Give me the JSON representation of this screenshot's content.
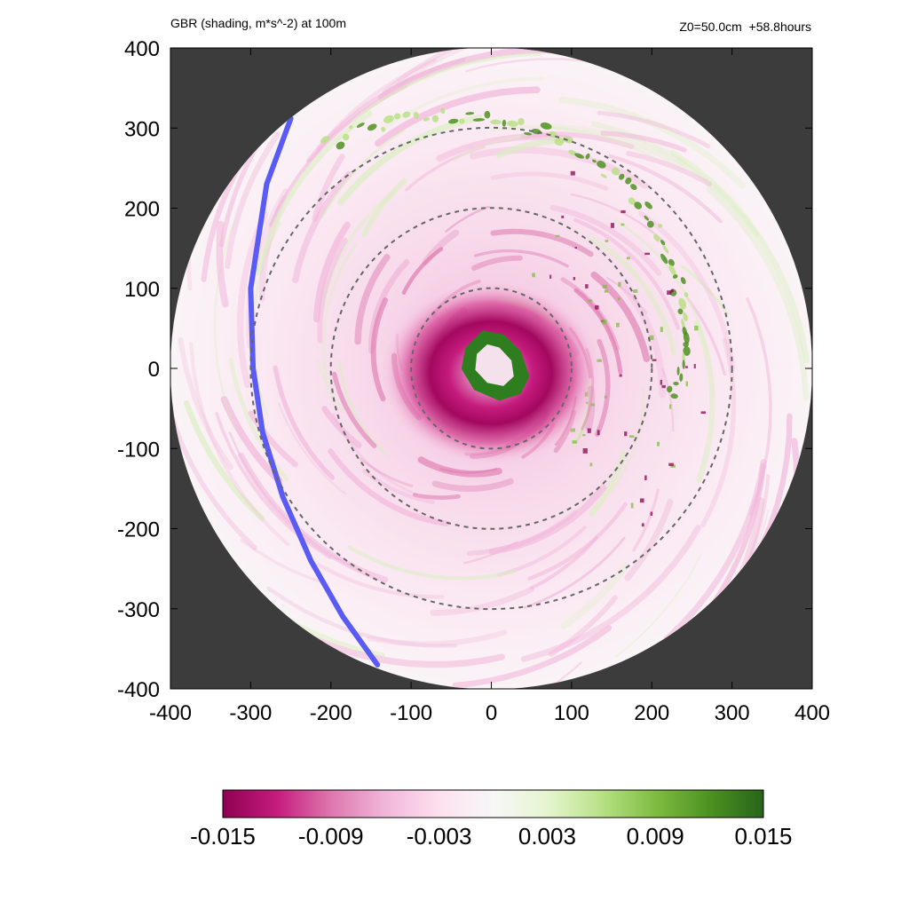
{
  "header": {
    "title": "GBR (shading, m*s^-2) at 100m",
    "info": "Z0=50.0cm  +58.8hours"
  },
  "chart_data": {
    "type": "heatmap",
    "title": "GBR (shading, m*s^-2) at 100m",
    "subtitle": "Z0=50.0cm  +58.8hours",
    "xlim": [
      -400,
      400
    ],
    "ylim": [
      -400,
      400
    ],
    "xticks": [
      "-400",
      "-300",
      "-200",
      "-100",
      "0",
      "100",
      "200",
      "300",
      "400"
    ],
    "yticks": [
      "400",
      "300",
      "200",
      "100",
      "0",
      "-100",
      "-200",
      "-300",
      "-400"
    ],
    "domain_radius": 400,
    "range_rings": [
      100,
      200,
      300
    ],
    "track": {
      "color": "#5a5af5",
      "points": [
        [
          -250,
          312
        ],
        [
          -280,
          230
        ],
        [
          -300,
          100
        ],
        [
          -297,
          0
        ],
        [
          -285,
          -80
        ],
        [
          -260,
          -160
        ],
        [
          -225,
          -240
        ],
        [
          -185,
          -310
        ],
        [
          -142,
          -370
        ]
      ]
    },
    "colorbar": {
      "min": -0.015,
      "max": 0.015,
      "tick_labels": [
        "-0.015",
        "-0.009",
        "-0.003",
        "0.003",
        "0.009",
        "0.015"
      ],
      "colors": [
        "#8e0152",
        "#c51b7d",
        "#de77ae",
        "#f1b6da",
        "#fde0ef",
        "#f7f7f7",
        "#e6f5d0",
        "#b8e186",
        "#7fbc41",
        "#4d9221",
        "#276419"
      ]
    },
    "features": {
      "eye_core_value": 0.015,
      "eyewall_value": -0.015,
      "outer_band_value": 0.009,
      "background_value": -0.002
    },
    "colors": {
      "outside_domain": "#3c3c3c",
      "ring": "#666666"
    }
  }
}
